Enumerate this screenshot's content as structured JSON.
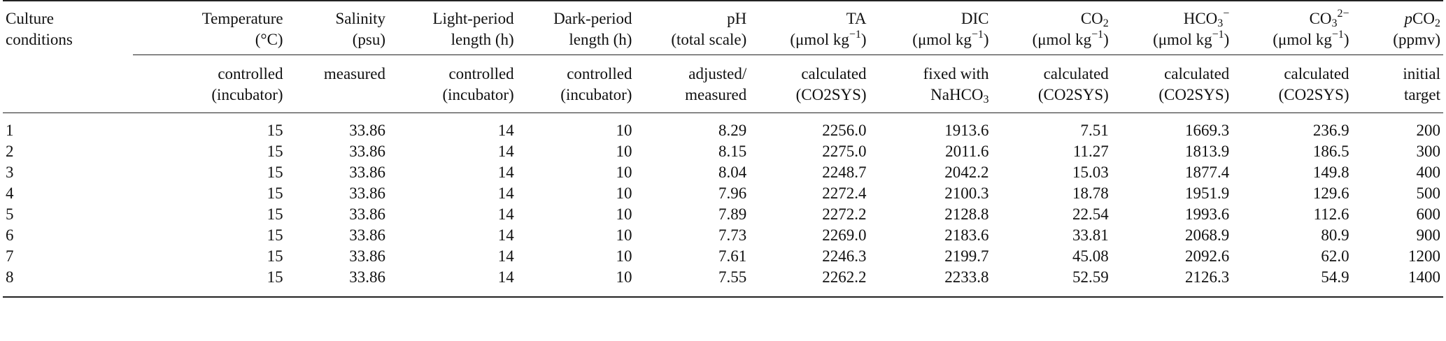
{
  "table": {
    "columns": [
      {
        "key": "culture",
        "l1": "Culture",
        "l2": "conditions",
        "method": [
          "",
          ""
        ]
      },
      {
        "key": "temp",
        "l1": "Temperature",
        "l2": "(°C)",
        "method": [
          "controlled",
          "(incubator)"
        ]
      },
      {
        "key": "sal",
        "l1": "Salinity",
        "l2": "(psu)",
        "method": [
          "measured",
          ""
        ]
      },
      {
        "key": "light",
        "l1": "Light-period",
        "l2": "length (h)",
        "method": [
          "controlled",
          "(incubator)"
        ]
      },
      {
        "key": "dark",
        "l1": "Dark-period",
        "l2": "length (h)",
        "method": [
          "controlled",
          "(incubator)"
        ]
      },
      {
        "key": "ph",
        "l1": "pH",
        "l2": "(total scale)",
        "method": [
          "adjusted/",
          "measured"
        ]
      },
      {
        "key": "ta",
        "l1": "TA",
        "l2": "(μmol kg",
        "method": [
          "calculated",
          "(CO2SYS)"
        ]
      },
      {
        "key": "dic",
        "l1": "DIC",
        "l2": "(μmol kg",
        "method": [
          "fixed with",
          "NaHCO"
        ]
      },
      {
        "key": "co2",
        "l1": "CO",
        "l2": "(μmol kg",
        "method": [
          "calculated",
          "(CO2SYS)"
        ]
      },
      {
        "key": "hco3",
        "l1": "HCO",
        "l2": "(μmol kg",
        "method": [
          "calculated",
          "(CO2SYS)"
        ]
      },
      {
        "key": "co3",
        "l1": "CO",
        "l2": "(μmol kg",
        "method": [
          "calculated",
          "(CO2SYS)"
        ]
      },
      {
        "key": "pco2",
        "l1": "CO",
        "l2": "(ppmv)",
        "method": [
          "initial",
          "target"
        ]
      }
    ],
    "unit_sup": "−1",
    "sub_2": "2",
    "sub_3": "3",
    "hco3_sup": "−",
    "co3_sup": "2−",
    "pco2_italic": "p",
    "rows": [
      [
        "1",
        "15",
        "33.86",
        "14",
        "10",
        "8.29",
        "2256.0",
        "1913.6",
        "7.51",
        "1669.3",
        "236.9",
        "200"
      ],
      [
        "2",
        "15",
        "33.86",
        "14",
        "10",
        "8.15",
        "2275.0",
        "2011.6",
        "11.27",
        "1813.9",
        "186.5",
        "300"
      ],
      [
        "3",
        "15",
        "33.86",
        "14",
        "10",
        "8.04",
        "2248.7",
        "2042.2",
        "15.03",
        "1877.4",
        "149.8",
        "400"
      ],
      [
        "4",
        "15",
        "33.86",
        "14",
        "10",
        "7.96",
        "2272.4",
        "2100.3",
        "18.78",
        "1951.9",
        "129.6",
        "500"
      ],
      [
        "5",
        "15",
        "33.86",
        "14",
        "10",
        "7.89",
        "2272.2",
        "2128.8",
        "22.54",
        "1993.6",
        "112.6",
        "600"
      ],
      [
        "6",
        "15",
        "33.86",
        "14",
        "10",
        "7.73",
        "2269.0",
        "2183.6",
        "33.81",
        "2068.9",
        "80.9",
        "900"
      ],
      [
        "7",
        "15",
        "33.86",
        "14",
        "10",
        "7.61",
        "2246.3",
        "2199.7",
        "45.08",
        "2092.6",
        "62.0",
        "1200"
      ],
      [
        "8",
        "15",
        "33.86",
        "14",
        "10",
        "7.55",
        "2262.2",
        "2233.8",
        "52.59",
        "2126.3",
        "54.9",
        "1400"
      ]
    ]
  }
}
